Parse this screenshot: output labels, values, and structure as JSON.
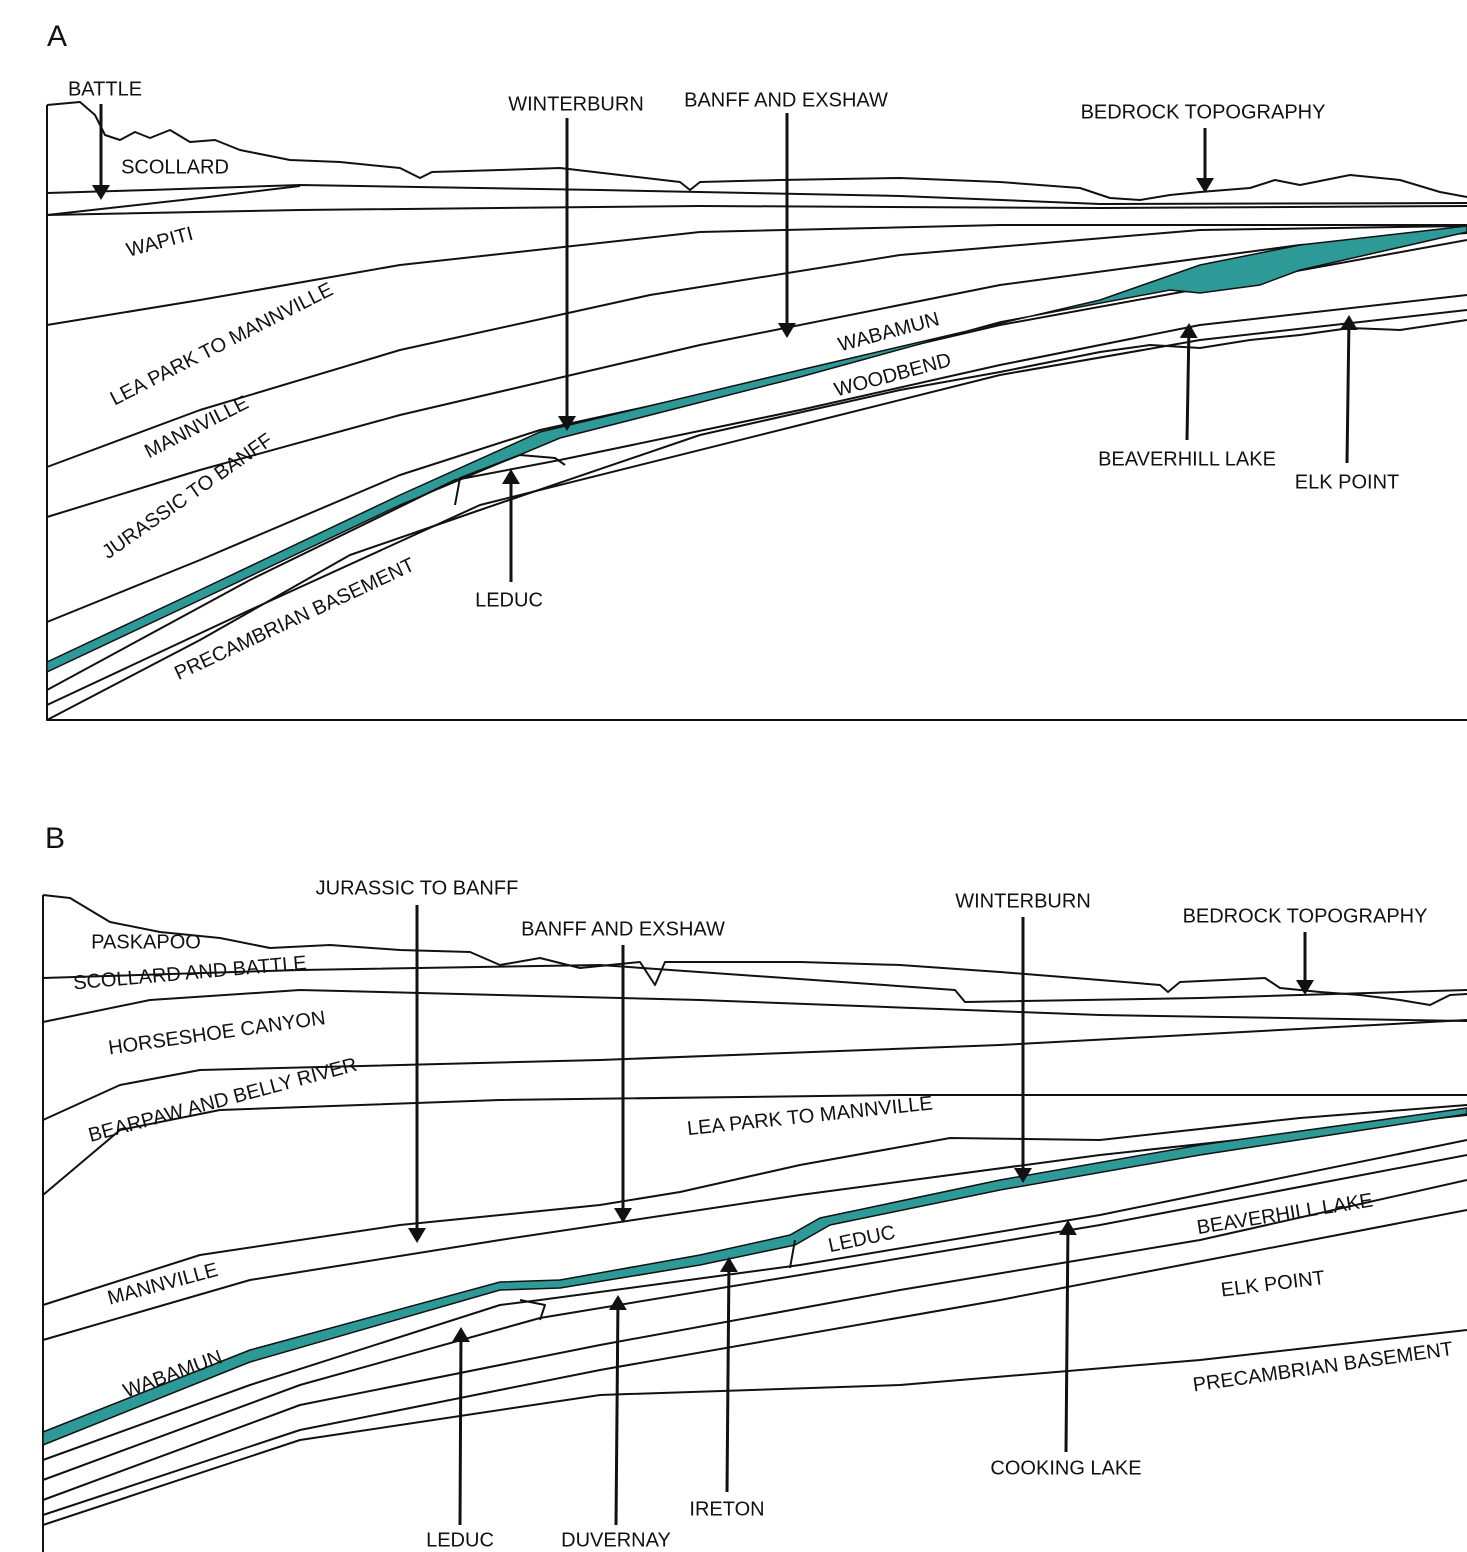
{
  "panels": [
    {
      "label": "A",
      "labels": [
        "BATTLE",
        "SCOLLARD",
        "WAPITI",
        "LEA PARK TO MANNVILLE",
        "MANNVILLE",
        "JURASSIC TO BANFF",
        "PRECAMBRIAN BASEMENT",
        "LEDUC",
        "WINTERBURN",
        "BANFF AND EXSHAW",
        "WABAMUN",
        "WOODBEND",
        "BEDROCK TOPOGRAPHY",
        "BEAVERHILL LAKE",
        "ELK POINT"
      ]
    },
    {
      "label": "B",
      "labels": [
        "JURASSIC TO BANFF",
        "PASKAPOO",
        "SCOLLARD AND BATTLE",
        "HORSESHOE CANYON",
        "BEARPAW AND BELLY RIVER",
        "BANFF AND EXSHAW",
        "LEA PARK TO MANNVILLE",
        "WINTERBURN",
        "BEDROCK TOPOGRAPHY",
        "MANNVILLE",
        "WABAMUN",
        "LEDUC",
        "BEAVERHILL LAKE",
        "ELK POINT",
        "PRECAMBRIAN BASEMENT",
        "COOKING LAKE",
        "IRETON",
        "LEDUC",
        "DUVERNAY"
      ]
    }
  ]
}
